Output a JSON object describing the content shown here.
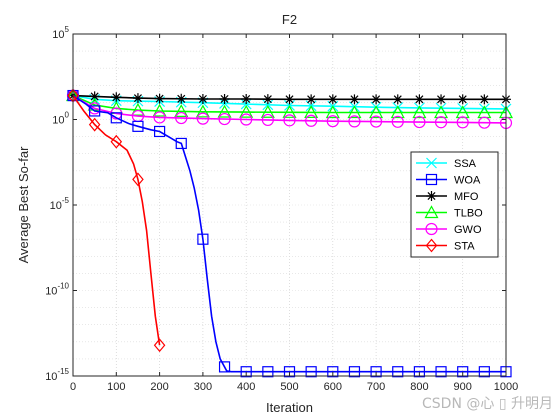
{
  "chart_data": {
    "type": "line",
    "title": "F2",
    "xlabel": "Iteration",
    "ylabel": "Average Best So-far",
    "xlim": [
      0,
      1000
    ],
    "ylim_exponent": [
      -15,
      5
    ],
    "y_scale": "log",
    "x_ticks": [
      "0",
      "100",
      "200",
      "300",
      "400",
      "500",
      "600",
      "700",
      "800",
      "900",
      "1000"
    ],
    "y_ticks": [
      {
        "exp": 5,
        "base": "10",
        "sup": "5"
      },
      {
        "exp": 0,
        "base": "10",
        "sup": "0"
      },
      {
        "exp": -5,
        "base": "10",
        "sup": "-5"
      },
      {
        "exp": -10,
        "base": "10",
        "sup": "-10"
      },
      {
        "exp": -15,
        "base": "10",
        "sup": "-15"
      }
    ],
    "grid": "major and minor, dotted",
    "legend_position": "right",
    "series": [
      {
        "name": "SSA",
        "color": "#00ffff",
        "marker": "x",
        "points": [
          [
            0,
            1.4
          ],
          [
            50,
            1.18
          ],
          [
            100,
            1.1
          ],
          [
            200,
            1.05
          ],
          [
            300,
            0.98
          ],
          [
            400,
            0.9
          ],
          [
            500,
            0.82
          ],
          [
            600,
            0.78
          ],
          [
            700,
            0.72
          ],
          [
            800,
            0.68
          ],
          [
            900,
            0.65
          ],
          [
            1000,
            0.62
          ]
        ]
      },
      {
        "name": "WOA",
        "color": "#0000ff",
        "marker": "square",
        "points": [
          [
            0,
            1.4
          ],
          [
            30,
            0.9
          ],
          [
            50,
            0.5
          ],
          [
            80,
            0.4
          ],
          [
            100,
            0.1
          ],
          [
            130,
            -0.25
          ],
          [
            150,
            -0.4
          ],
          [
            180,
            -0.6
          ],
          [
            200,
            -0.7
          ],
          [
            220,
            -1.0
          ],
          [
            240,
            -1.3
          ],
          [
            250,
            -1.4
          ],
          [
            260,
            -2.2
          ],
          [
            270,
            -3.0
          ],
          [
            280,
            -4.0
          ],
          [
            290,
            -5.3
          ],
          [
            300,
            -7.0
          ],
          [
            310,
            -9.3
          ],
          [
            320,
            -11.5
          ],
          [
            330,
            -13.0
          ],
          [
            340,
            -14.0
          ],
          [
            355,
            -14.7
          ],
          [
            365,
            -14.75
          ],
          [
            400,
            -14.75
          ],
          [
            500,
            -14.75
          ],
          [
            600,
            -14.75
          ],
          [
            700,
            -14.75
          ],
          [
            800,
            -14.75
          ],
          [
            900,
            -14.75
          ],
          [
            1000,
            -14.75
          ]
        ]
      },
      {
        "name": "MFO",
        "color": "#000000",
        "marker": "asterisk",
        "points": [
          [
            0,
            1.4
          ],
          [
            50,
            1.35
          ],
          [
            100,
            1.3
          ],
          [
            150,
            1.25
          ],
          [
            200,
            1.22
          ],
          [
            300,
            1.2
          ],
          [
            400,
            1.2
          ],
          [
            500,
            1.18
          ],
          [
            600,
            1.18
          ],
          [
            700,
            1.18
          ],
          [
            800,
            1.18
          ],
          [
            900,
            1.18
          ],
          [
            1000,
            1.18
          ]
        ]
      },
      {
        "name": "TLBO",
        "color": "#00ff00",
        "marker": "triangle",
        "points": [
          [
            0,
            1.4
          ],
          [
            50,
            0.85
          ],
          [
            100,
            0.65
          ],
          [
            150,
            0.55
          ],
          [
            200,
            0.5
          ],
          [
            300,
            0.45
          ],
          [
            400,
            0.43
          ],
          [
            500,
            0.42
          ],
          [
            600,
            0.41
          ],
          [
            700,
            0.41
          ],
          [
            800,
            0.41
          ],
          [
            900,
            0.41
          ],
          [
            1000,
            0.41
          ]
        ]
      },
      {
        "name": "GWO",
        "color": "#ff00ff",
        "marker": "circle",
        "points": [
          [
            0,
            1.4
          ],
          [
            50,
            0.65
          ],
          [
            100,
            0.35
          ],
          [
            150,
            0.2
          ],
          [
            200,
            0.12
          ],
          [
            300,
            0.05
          ],
          [
            400,
            0.0
          ],
          [
            500,
            -0.05
          ],
          [
            600,
            -0.1
          ],
          [
            700,
            -0.12
          ],
          [
            800,
            -0.15
          ],
          [
            900,
            -0.17
          ],
          [
            1000,
            -0.2
          ]
        ]
      },
      {
        "name": "STA",
        "color": "#ff0000",
        "marker": "diamond",
        "points": [
          [
            0,
            1.4
          ],
          [
            25,
            0.5
          ],
          [
            50,
            -0.3
          ],
          [
            75,
            -0.9
          ],
          [
            100,
            -1.3
          ],
          [
            125,
            -1.8
          ],
          [
            140,
            -2.6
          ],
          [
            150,
            -3.5
          ],
          [
            160,
            -4.8
          ],
          [
            170,
            -6.5
          ],
          [
            180,
            -9.0
          ],
          [
            190,
            -11.5
          ],
          [
            200,
            -13.2
          ]
        ]
      }
    ]
  },
  "watermark": "CSDN @心 ▯ 升明月"
}
